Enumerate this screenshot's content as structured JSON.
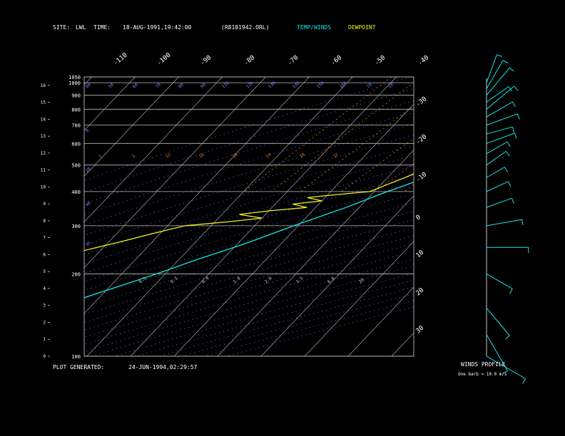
{
  "header": {
    "site_label": "SITE:",
    "site_value": "LWL",
    "time_label": "TIME:",
    "time_value": "18-AUG-1991,19:42:00",
    "file": "(R8181942.ORL)",
    "legend_temp": "TEMP/WINDS",
    "legend_dew": "DEWPOINT"
  },
  "footer": {
    "plot_generated_label": "PLOT GENERATED:",
    "plot_generated_value": "24-JUN-1994,02:29:57",
    "winds_profile": "WINDS PROFILE",
    "barb_note": "One barb = 10.0 m/s"
  },
  "colors": {
    "temp": "#19e6e6",
    "dewpoint": "#f0f020",
    "isobar": "#bdbdbd",
    "isotherm": "#bdbdbd",
    "dry_adiabat": "#3c5ff0",
    "mixing_ratio": "#e07a2c",
    "background": "#000000"
  },
  "chart_data": {
    "type": "line",
    "title": "",
    "pressure_labels": [
      "100",
      "200",
      "300",
      "400",
      "500",
      "600",
      "700",
      "800",
      "900",
      "1000",
      "1050"
    ],
    "height_labels": [
      "0",
      "1",
      "2",
      "3",
      "4",
      "5",
      "6",
      "7",
      "8",
      "9",
      "10",
      "11",
      "12",
      "13",
      "14",
      "15",
      "16"
    ],
    "isotherm_top_labels": [
      "-110",
      "-100",
      "-90",
      "-80",
      "-70",
      "-60",
      "-50",
      "-40"
    ],
    "isotherm_right_labels": [
      "-30",
      "-20",
      "-10",
      "0",
      "10",
      "20",
      "30"
    ],
    "dry_adiabat_labels": [
      "80",
      "50",
      "60",
      "70",
      "80",
      "90",
      "110",
      "120",
      "130",
      "140",
      "150",
      "160",
      "70",
      "10",
      "0",
      "20",
      "40",
      "35"
    ],
    "mixing_ratio_labels": [
      "1",
      "3",
      "12",
      "16",
      "20",
      "24",
      "28",
      "32"
    ],
    "mixing_ratio_labels_low": [
      "0.1",
      "0.2",
      "0.4",
      "1.0",
      "2.0",
      "3.5",
      "6.0",
      "20"
    ],
    "series": [
      {
        "name": "TEMP/WINDS",
        "points": [
          {
            "p": 1030,
            "t": 31
          },
          {
            "p": 1000,
            "t": 29
          },
          {
            "p": 960,
            "t": 26
          },
          {
            "p": 920,
            "t": 23
          },
          {
            "p": 880,
            "t": 21
          },
          {
            "p": 850,
            "t": 19
          },
          {
            "p": 800,
            "t": 16
          },
          {
            "p": 750,
            "t": 13
          },
          {
            "p": 700,
            "t": 10
          },
          {
            "p": 650,
            "t": 6
          },
          {
            "p": 600,
            "t": 2
          },
          {
            "p": 550,
            "t": -2
          },
          {
            "p": 500,
            "t": -6
          },
          {
            "p": 450,
            "t": -11
          },
          {
            "p": 400,
            "t": -17
          },
          {
            "p": 350,
            "t": -23
          },
          {
            "p": 300,
            "t": -31
          },
          {
            "p": 270,
            "t": -36
          },
          {
            "p": 250,
            "t": -40
          },
          {
            "p": 225,
            "t": -46
          },
          {
            "p": 200,
            "t": -52
          },
          {
            "p": 180,
            "t": -58
          },
          {
            "p": 165,
            "t": -63
          },
          {
            "p": 150,
            "t": -68
          },
          {
            "p": 140,
            "t": -70
          },
          {
            "p": 130,
            "t": -69
          },
          {
            "p": 120,
            "t": -70
          },
          {
            "p": 112,
            "t": -72
          },
          {
            "p": 105,
            "t": -71
          },
          {
            "p": 100,
            "t": -71
          }
        ]
      },
      {
        "name": "DEWPOINT",
        "points": [
          {
            "p": 1030,
            "t": 24
          },
          {
            "p": 1000,
            "t": 23
          },
          {
            "p": 950,
            "t": 21
          },
          {
            "p": 900,
            "t": 19
          },
          {
            "p": 850,
            "t": 17
          },
          {
            "p": 800,
            "t": 15
          },
          {
            "p": 750,
            "t": 10
          },
          {
            "p": 700,
            "t": 6
          },
          {
            "p": 650,
            "t": 2
          },
          {
            "p": 600,
            "t": -3
          },
          {
            "p": 550,
            "t": -9
          },
          {
            "p": 500,
            "t": -12
          },
          {
            "p": 450,
            "t": -16
          },
          {
            "p": 420,
            "t": -19
          },
          {
            "p": 400,
            "t": -21
          },
          {
            "p": 390,
            "t": -28
          },
          {
            "p": 380,
            "t": -34
          },
          {
            "p": 370,
            "t": -30
          },
          {
            "p": 360,
            "t": -36
          },
          {
            "p": 350,
            "t": -32
          },
          {
            "p": 340,
            "t": -40
          },
          {
            "p": 330,
            "t": -46
          },
          {
            "p": 320,
            "t": -40
          },
          {
            "p": 310,
            "t": -47
          },
          {
            "p": 300,
            "t": -56
          },
          {
            "p": 280,
            "t": -62
          },
          {
            "p": 260,
            "t": -68
          },
          {
            "p": 240,
            "t": -75
          },
          {
            "p": 200,
            "t": -78
          },
          {
            "p": 170,
            "t": -81
          },
          {
            "p": 150,
            "t": -82
          },
          {
            "p": 130,
            "t": -84
          },
          {
            "p": 115,
            "t": -83
          },
          {
            "p": 105,
            "t": -84
          },
          {
            "p": 100,
            "t": -85
          }
        ]
      }
    ],
    "winds": [
      {
        "p": 1000,
        "speed_ms": 10,
        "dir": 200
      },
      {
        "p": 950,
        "speed_ms": 11,
        "dir": 210
      },
      {
        "p": 900,
        "speed_ms": 12,
        "dir": 220
      },
      {
        "p": 850,
        "speed_ms": 9,
        "dir": 235
      },
      {
        "p": 800,
        "speed_ms": 12,
        "dir": 230
      },
      {
        "p": 750,
        "speed_ms": 10,
        "dir": 240
      },
      {
        "p": 700,
        "speed_ms": 11,
        "dir": 250
      },
      {
        "p": 650,
        "speed_ms": 9,
        "dir": 255
      },
      {
        "p": 600,
        "speed_ms": 10,
        "dir": 250
      },
      {
        "p": 550,
        "speed_ms": 8,
        "dir": 240
      },
      {
        "p": 500,
        "speed_ms": 8,
        "dir": 235
      },
      {
        "p": 450,
        "speed_ms": 7,
        "dir": 240
      },
      {
        "p": 400,
        "speed_ms": 8,
        "dir": 245
      },
      {
        "p": 350,
        "speed_ms": 9,
        "dir": 250
      },
      {
        "p": 300,
        "speed_ms": 12,
        "dir": 260
      },
      {
        "p": 250,
        "speed_ms": 14,
        "dir": 270
      },
      {
        "p": 200,
        "speed_ms": 10,
        "dir": 300
      },
      {
        "p": 150,
        "speed_ms": 12,
        "dir": 320
      },
      {
        "p": 120,
        "speed_ms": 14,
        "dir": 330
      },
      {
        "p": 100,
        "speed_ms": 15,
        "dir": 300
      }
    ]
  }
}
